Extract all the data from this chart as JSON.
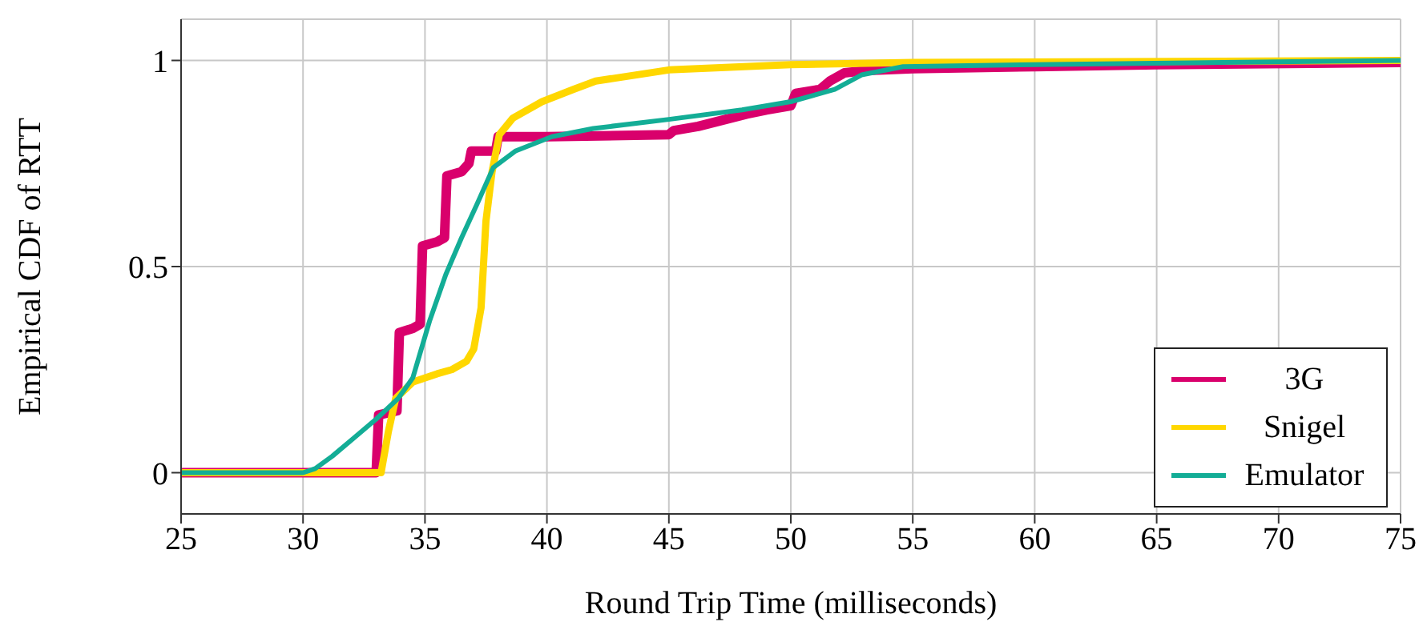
{
  "chart_data": {
    "type": "line",
    "xlabel": "Round Trip Time (milliseconds)",
    "ylabel": "Empirical CDF of RTT",
    "xlim": [
      25,
      75
    ],
    "xticks": [
      25,
      30,
      35,
      40,
      45,
      50,
      55,
      60,
      65,
      70,
      75
    ],
    "ylim": [
      -0.1,
      1.1
    ],
    "yticks": [
      0,
      0.5,
      1
    ],
    "grid": true,
    "legend": "bottom right",
    "marker": "none",
    "line_style": "solid",
    "series": [
      {
        "name": "3G",
        "color": "#d9006c",
        "x": [
          25,
          33.0,
          33.1,
          33.85,
          33.95,
          34.5,
          34.8,
          34.9,
          35.5,
          35.8,
          35.9,
          36.5,
          36.8,
          36.9,
          37.9,
          38.0,
          40,
          45,
          45.2,
          46.2,
          47.2,
          48.2,
          49.0,
          50.0,
          50.2,
          51.2,
          51.6,
          52.2,
          53,
          55,
          60,
          65,
          75
        ],
        "values": [
          0,
          0,
          0.14,
          0.15,
          0.34,
          0.35,
          0.36,
          0.55,
          0.56,
          0.57,
          0.72,
          0.73,
          0.75,
          0.78,
          0.78,
          0.815,
          0.815,
          0.82,
          0.83,
          0.84,
          0.855,
          0.87,
          0.88,
          0.89,
          0.92,
          0.93,
          0.95,
          0.97,
          0.975,
          0.98,
          0.985,
          0.99,
          0.995
        ]
      },
      {
        "name": "Snigel",
        "color": "#ffd700",
        "x": [
          25,
          33.2,
          33.5,
          33.8,
          34.5,
          35.5,
          36.1,
          36.7,
          37.0,
          37.3,
          37.5,
          37.75,
          38.05,
          38.6,
          39.8,
          41.1,
          42,
          45,
          50,
          55,
          75
        ],
        "values": [
          0,
          0,
          0.1,
          0.18,
          0.22,
          0.24,
          0.25,
          0.27,
          0.3,
          0.4,
          0.61,
          0.73,
          0.82,
          0.86,
          0.9,
          0.93,
          0.95,
          0.977,
          0.99,
          0.995,
          1.0
        ]
      },
      {
        "name": "Emulator",
        "color": "#13ad96",
        "x": [
          25,
          30.0,
          30.5,
          31.2,
          32.1,
          33.0,
          33.9,
          34.5,
          35.2,
          35.85,
          36.5,
          37.2,
          37.8,
          38.7,
          40.2,
          41.9,
          45,
          48,
          50,
          51.8,
          52.9,
          54.6,
          60,
          75
        ],
        "values": [
          0,
          0,
          0.01,
          0.04,
          0.085,
          0.13,
          0.18,
          0.23,
          0.37,
          0.48,
          0.57,
          0.66,
          0.74,
          0.78,
          0.815,
          0.835,
          0.857,
          0.88,
          0.9,
          0.93,
          0.965,
          0.985,
          0.99,
          1.0
        ]
      }
    ]
  }
}
